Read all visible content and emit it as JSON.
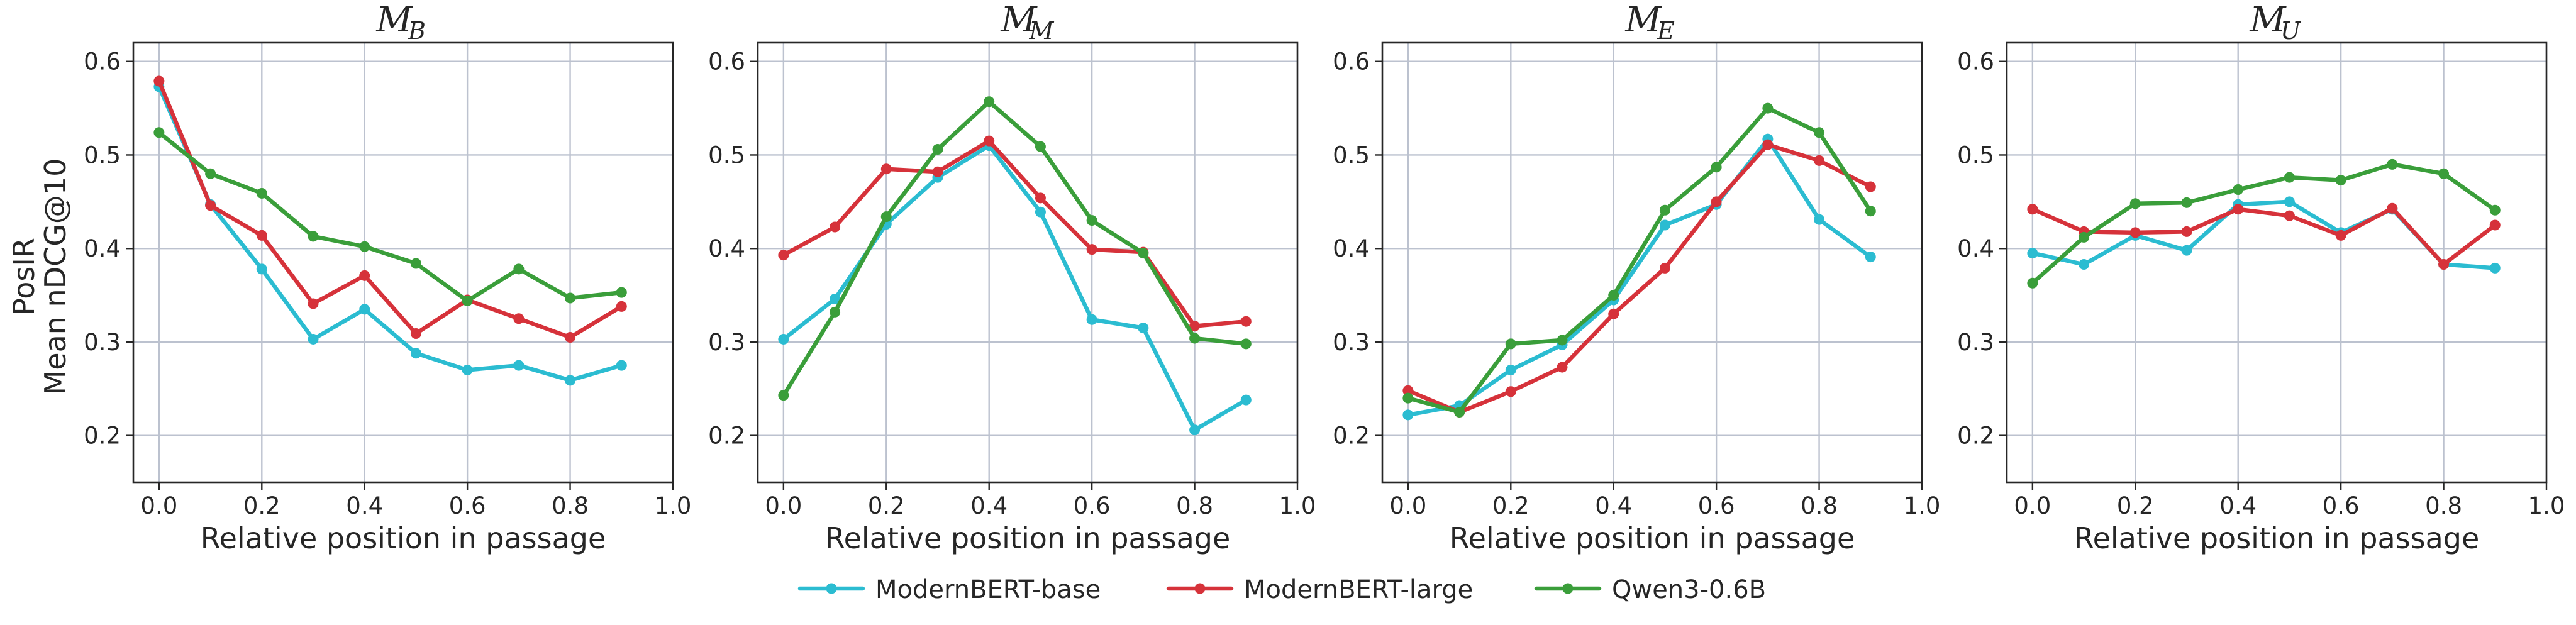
{
  "figure": {
    "ylabel_line1": "PosIR",
    "ylabel_line2": "Mean nDCG@10",
    "legend": [
      {
        "label": "ModernBERT-base",
        "color": "#2bbcd1"
      },
      {
        "label": "ModernBERT-large",
        "color": "#d6323a"
      },
      {
        "label": "Qwen3-0.6B",
        "color": "#3a9e3a"
      }
    ]
  },
  "chart_data": [
    {
      "type": "line",
      "title": "M",
      "title_subscript": "B",
      "xlabel": "Relative position in passage",
      "xlim": [
        -0.05,
        1.0
      ],
      "ylim": [
        0.15,
        0.62
      ],
      "xticks": [
        "0.0",
        "0.2",
        "0.4",
        "0.6",
        "0.8",
        "1.0"
      ],
      "yticks": [
        "0.2",
        "0.3",
        "0.4",
        "0.5",
        "0.6"
      ],
      "grid": true,
      "x": [
        0.0,
        0.1,
        0.2,
        0.3,
        0.4,
        0.5,
        0.6,
        0.7,
        0.8,
        0.9
      ],
      "series": [
        {
          "name": "ModernBERT-base",
          "color": "#2bbcd1",
          "values": [
            0.573,
            0.447,
            0.378,
            0.303,
            0.335,
            0.288,
            0.27,
            0.275,
            0.259,
            0.275
          ]
        },
        {
          "name": "ModernBERT-large",
          "color": "#d6323a",
          "values": [
            0.579,
            0.446,
            0.414,
            0.341,
            0.371,
            0.309,
            0.345,
            0.325,
            0.305,
            0.338
          ]
        },
        {
          "name": "Qwen3-0.6B",
          "color": "#3a9e3a",
          "values": [
            0.524,
            0.48,
            0.459,
            0.413,
            0.402,
            0.384,
            0.344,
            0.378,
            0.347,
            0.353
          ]
        }
      ]
    },
    {
      "type": "line",
      "title": "M",
      "title_subscript": "M",
      "xlabel": "Relative position in passage",
      "xlim": [
        -0.05,
        1.0
      ],
      "ylim": [
        0.15,
        0.62
      ],
      "xticks": [
        "0.0",
        "0.2",
        "0.4",
        "0.6",
        "0.8",
        "1.0"
      ],
      "yticks": [
        "0.2",
        "0.3",
        "0.4",
        "0.5",
        "0.6"
      ],
      "grid": true,
      "x": [
        0.0,
        0.1,
        0.2,
        0.3,
        0.4,
        0.5,
        0.6,
        0.7,
        0.8,
        0.9
      ],
      "series": [
        {
          "name": "ModernBERT-base",
          "color": "#2bbcd1",
          "values": [
            0.303,
            0.346,
            0.426,
            0.476,
            0.51,
            0.439,
            0.324,
            0.315,
            0.206,
            0.238
          ]
        },
        {
          "name": "ModernBERT-large",
          "color": "#d6323a",
          "values": [
            0.393,
            0.423,
            0.485,
            0.482,
            0.515,
            0.454,
            0.399,
            0.396,
            0.317,
            0.322
          ]
        },
        {
          "name": "Qwen3-0.6B",
          "color": "#3a9e3a",
          "values": [
            0.243,
            0.332,
            0.434,
            0.506,
            0.557,
            0.509,
            0.43,
            0.395,
            0.304,
            0.298
          ]
        }
      ]
    },
    {
      "type": "line",
      "title": "M",
      "title_subscript": "E",
      "xlabel": "Relative position in passage",
      "xlim": [
        -0.05,
        1.0
      ],
      "ylim": [
        0.15,
        0.62
      ],
      "xticks": [
        "0.0",
        "0.2",
        "0.4",
        "0.6",
        "0.8",
        "1.0"
      ],
      "yticks": [
        "0.2",
        "0.3",
        "0.4",
        "0.5",
        "0.6"
      ],
      "grid": true,
      "x": [
        0.0,
        0.1,
        0.2,
        0.3,
        0.4,
        0.5,
        0.6,
        0.7,
        0.8,
        0.9
      ],
      "series": [
        {
          "name": "ModernBERT-base",
          "color": "#2bbcd1",
          "values": [
            0.222,
            0.232,
            0.27,
            0.297,
            0.345,
            0.425,
            0.447,
            0.517,
            0.431,
            0.391
          ]
        },
        {
          "name": "ModernBERT-large",
          "color": "#d6323a",
          "values": [
            0.248,
            0.225,
            0.247,
            0.273,
            0.33,
            0.379,
            0.45,
            0.511,
            0.494,
            0.466
          ]
        },
        {
          "name": "Qwen3-0.6B",
          "color": "#3a9e3a",
          "values": [
            0.24,
            0.225,
            0.298,
            0.302,
            0.35,
            0.441,
            0.487,
            0.55,
            0.524,
            0.44
          ]
        }
      ]
    },
    {
      "type": "line",
      "title": "M",
      "title_subscript": "U",
      "xlabel": "Relative position in passage",
      "xlim": [
        -0.05,
        1.0
      ],
      "ylim": [
        0.15,
        0.62
      ],
      "xticks": [
        "0.0",
        "0.2",
        "0.4",
        "0.6",
        "0.8",
        "1.0"
      ],
      "yticks": [
        "0.2",
        "0.3",
        "0.4",
        "0.5",
        "0.6"
      ],
      "grid": true,
      "x": [
        0.0,
        0.1,
        0.2,
        0.3,
        0.4,
        0.5,
        0.6,
        0.7,
        0.8,
        0.9
      ],
      "series": [
        {
          "name": "ModernBERT-base",
          "color": "#2bbcd1",
          "values": [
            0.395,
            0.383,
            0.414,
            0.398,
            0.447,
            0.45,
            0.417,
            0.442,
            0.383,
            0.379
          ]
        },
        {
          "name": "ModernBERT-large",
          "color": "#d6323a",
          "values": [
            0.442,
            0.418,
            0.417,
            0.418,
            0.442,
            0.435,
            0.414,
            0.443,
            0.383,
            0.425
          ]
        },
        {
          "name": "Qwen3-0.6B",
          "color": "#3a9e3a",
          "values": [
            0.363,
            0.412,
            0.448,
            0.449,
            0.463,
            0.476,
            0.473,
            0.49,
            0.48,
            0.441
          ]
        }
      ]
    }
  ]
}
